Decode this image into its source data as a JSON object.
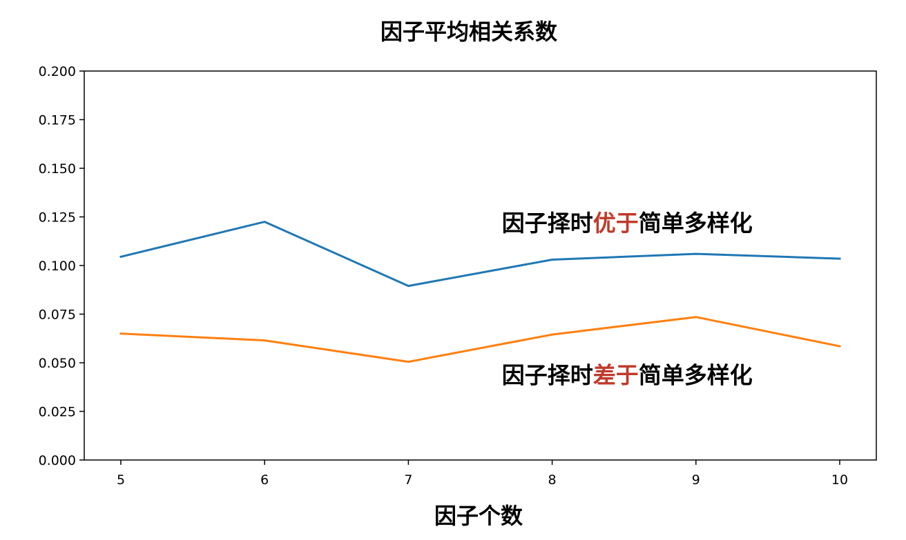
{
  "chart_data": {
    "type": "line",
    "title": "因子平均相关系数",
    "xlabel": "因子个数",
    "ylabel": "",
    "x": [
      5,
      6,
      7,
      8,
      9,
      10
    ],
    "x_tick_labels": [
      "5",
      "6",
      "7",
      "8",
      "9",
      "10"
    ],
    "ylim": [
      0,
      0.2
    ],
    "y_ticks": [
      0,
      0.025,
      0.05,
      0.075,
      0.1,
      0.125,
      0.15,
      0.175,
      0.2
    ],
    "y_tick_labels": [
      "0.000",
      "0.025",
      "0.050",
      "0.075",
      "0.100",
      "0.125",
      "0.150",
      "0.175",
      "0.200"
    ],
    "grid": false,
    "series": [
      {
        "color": "#1f77b4",
        "values": [
          0.1045,
          0.1225,
          0.0895,
          0.103,
          0.106,
          0.1035
        ]
      },
      {
        "color": "#ff7f0e",
        "values": [
          0.065,
          0.0615,
          0.0505,
          0.0645,
          0.0735,
          0.0585
        ]
      }
    ],
    "annotations": [
      {
        "x": 7.65,
        "y": 0.1177,
        "parts": [
          {
            "text": "因子择时",
            "color": "#000000"
          },
          {
            "text": "优于",
            "color": "#c0392b"
          },
          {
            "text": "简单多样化",
            "color": "#000000"
          }
        ]
      },
      {
        "x": 7.65,
        "y": 0.0395,
        "parts": [
          {
            "text": "因子择时",
            "color": "#000000"
          },
          {
            "text": "差于",
            "color": "#c0392b"
          },
          {
            "text": "简单多样化",
            "color": "#000000"
          }
        ]
      }
    ]
  }
}
